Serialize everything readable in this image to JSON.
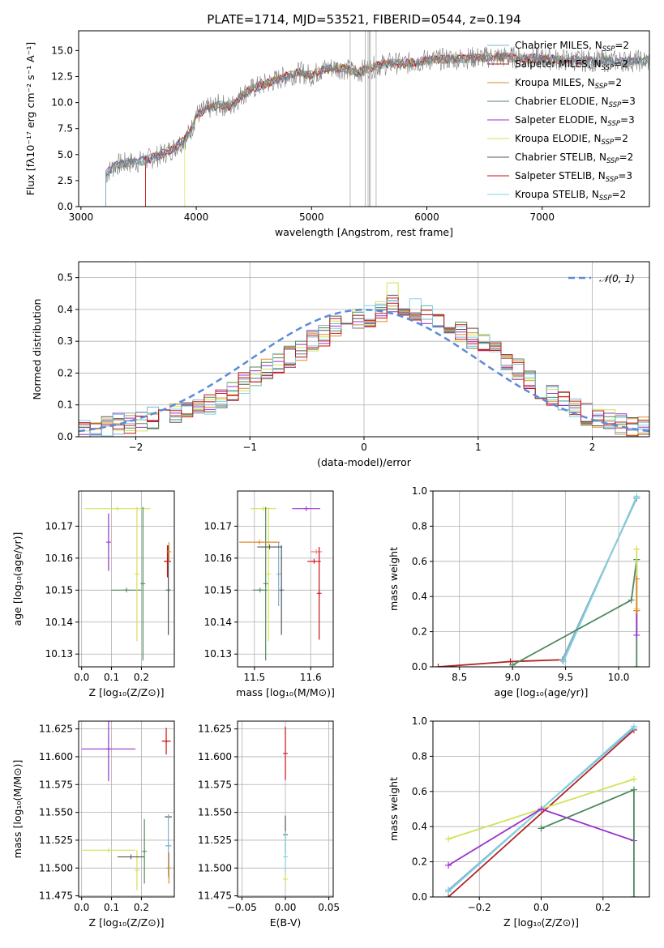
{
  "title": "PLATE=1714, MJD=53521, FIBERID=0544, z=0.194",
  "colors": [
    "#82b0d2",
    "#b22222",
    "#e08a2c",
    "#4f8a5f",
    "#9933cc",
    "#d4e157",
    "#555555",
    "#cc1111",
    "#7fd3e0"
  ],
  "chart_data": [
    {
      "id": "spectrum",
      "type": "line",
      "xlabel": "wavelength [Angstrom, rest frame]",
      "ylabel": "Flux [fλ10⁻¹⁷ erg cm⁻² s⁻¹ A⁻¹]",
      "xlim": [
        2980,
        7930
      ],
      "ylim": [
        0,
        16.9
      ],
      "xticks": [
        3000,
        4000,
        5000,
        6000,
        7000
      ],
      "yticks": [
        0.0,
        2.5,
        5.0,
        7.5,
        10.0,
        12.5,
        15.0
      ],
      "legend": "top-right",
      "continuum": {
        "x": [
          3215,
          3250,
          3300,
          3400,
          3500,
          3600,
          3700,
          3800,
          3900,
          3950,
          4000,
          4100,
          4200,
          4300,
          4400,
          4500,
          4600,
          4700,
          4800,
          4900,
          5000,
          5100,
          5200,
          5300,
          5400,
          5500,
          5600,
          5700,
          5800,
          5900,
          6000,
          6200,
          6400,
          6600,
          6800,
          7000,
          7200,
          7400
        ],
        "y": [
          3.0,
          3.5,
          4.0,
          4.2,
          4.3,
          4.6,
          5.0,
          5.6,
          6.5,
          7.2,
          8.8,
          9.4,
          9.8,
          9.6,
          10.8,
          11.4,
          11.8,
          12.2,
          12.6,
          12.9,
          12.6,
          13.2,
          13.4,
          13.2,
          12.9,
          13.3,
          13.6,
          13.8,
          13.7,
          13.9,
          14.1,
          14.2,
          14.3,
          14.4,
          14.3,
          14.2,
          14.1,
          14.0
        ]
      },
      "series_names": [
        "Chabrier MILES, N_SSP=2",
        "Salpeter MILES, N_SSP=2",
        "Kroupa MILES, N_SSP=2",
        "Chabrier ELODIE, N_SSP=3",
        "Salpeter ELODIE, N_SSP=3",
        "Kroupa ELODIE, N_SSP=2",
        "Chabrier STELIB, N_SSP=2",
        "Salpeter STELIB, N_SSP=3",
        "Kroupa STELIB, N_SSP=2"
      ]
    },
    {
      "id": "residuals",
      "type": "line",
      "xlabel": "(data-model)/error",
      "ylabel": "Normed distribution",
      "xlim": [
        -2.5,
        2.5
      ],
      "ylim": [
        0,
        0.55
      ],
      "xticks": [
        -2,
        -1,
        0,
        1,
        2
      ],
      "yticks": [
        0.0,
        0.1,
        0.2,
        0.3,
        0.4,
        0.5
      ],
      "reference_label": "𝒩(0, 1)",
      "histogram_bins": [
        -2.5,
        -2.4,
        -2.3,
        -2.2,
        -2.1,
        -2.0,
        -1.9,
        -1.8,
        -1.7,
        -1.6,
        -1.5,
        -1.4,
        -1.3,
        -1.2,
        -1.1,
        -1.0,
        -0.9,
        -0.8,
        -0.7,
        -0.6,
        -0.5,
        -0.4,
        -0.3,
        -0.2,
        -0.1,
        0.0,
        0.1,
        0.2,
        0.3,
        0.4,
        0.5,
        0.6,
        0.7,
        0.8,
        0.9,
        1.0,
        1.1,
        1.2,
        1.3,
        1.4,
        1.5,
        1.6,
        1.7,
        1.8,
        1.9,
        2.0,
        2.1,
        2.2,
        2.3,
        2.4,
        2.5
      ],
      "histogram_mean": [
        0.02,
        0.02,
        0.03,
        0.04,
        0.04,
        0.05,
        0.06,
        0.07,
        0.07,
        0.08,
        0.09,
        0.1,
        0.12,
        0.14,
        0.17,
        0.19,
        0.21,
        0.23,
        0.25,
        0.27,
        0.3,
        0.32,
        0.35,
        0.36,
        0.37,
        0.38,
        0.39,
        0.41,
        0.41,
        0.4,
        0.38,
        0.37,
        0.35,
        0.33,
        0.31,
        0.3,
        0.27,
        0.24,
        0.21,
        0.18,
        0.15,
        0.13,
        0.11,
        0.09,
        0.07,
        0.06,
        0.05,
        0.04,
        0.03,
        0.03
      ]
    },
    {
      "id": "age_vs_Z",
      "type": "scatter",
      "xlabel": "Z [log₁₀(Z/Z⊙)]",
      "ylabel": "age  [log₁₀(age/yr)]",
      "xlim": [
        -0.01,
        0.31
      ],
      "ylim": [
        10.126,
        10.181
      ],
      "xticks": [
        0.0,
        0.1,
        0.2
      ],
      "yticks": [
        10.13,
        10.14,
        10.15,
        10.16,
        10.17
      ],
      "points": [
        {
          "x": 0.09,
          "y": 10.165,
          "xerr": 0.0,
          "yerr": 0.009,
          "color": "#9933cc"
        },
        {
          "x": 0.15,
          "y": 10.15,
          "xerr": 0.05,
          "yerr": 0.0,
          "color": "#4f8a5f"
        },
        {
          "x": 0.12,
          "y": 10.1755,
          "xerr": 0.11,
          "yerr": 0.0,
          "color": "#d4e157"
        },
        {
          "x": 0.185,
          "y": 10.155,
          "xerr": 0.0,
          "yerr": 0.021,
          "color": "#d4e157"
        },
        {
          "x": 0.205,
          "y": 10.152,
          "xerr": 0.0,
          "yerr": 0.024,
          "color": "#4f8a5f"
        },
        {
          "x": 0.287,
          "y": 10.159,
          "xerr": 0.012,
          "yerr": 0.005,
          "color": "#cc1111"
        },
        {
          "x": 0.29,
          "y": 10.15,
          "xerr": 0.0,
          "yerr": 0.014,
          "color": "#555555"
        },
        {
          "x": 0.292,
          "y": 10.162,
          "xerr": 0.005,
          "yerr": 0.003,
          "color": "#e08a2c"
        }
      ]
    },
    {
      "id": "age_vs_mass",
      "type": "scatter",
      "xlabel": "mass [log₁₀(M/M⊙)]",
      "ylabel": "",
      "xlim": [
        11.47,
        11.64
      ],
      "ylim": [
        10.126,
        10.181
      ],
      "xticks": [
        11.5,
        11.6
      ],
      "yticks": [
        10.13,
        10.14,
        10.15,
        10.16,
        10.17
      ],
      "points": [
        {
          "x": 11.516,
          "y": 10.1755,
          "xerr": 0.023,
          "yerr": 0.0,
          "color": "#d4e157"
        },
        {
          "x": 11.51,
          "y": 10.15,
          "xerr": 0.013,
          "yerr": 0.0,
          "color": "#4f8a5f"
        },
        {
          "x": 11.52,
          "y": 10.152,
          "xerr": 0.0,
          "yerr": 0.024,
          "color": "#4f8a5f"
        },
        {
          "x": 11.525,
          "y": 10.155,
          "xerr": 0.0,
          "yerr": 0.021,
          "color": "#d4e157"
        },
        {
          "x": 11.509,
          "y": 10.165,
          "xerr": 0.036,
          "yerr": 0.0,
          "color": "#e08a2c"
        },
        {
          "x": 11.543,
          "y": 10.155,
          "xerr": 0.0,
          "yerr": 0.01,
          "color": "#82b0d2"
        },
        {
          "x": 11.527,
          "y": 10.1635,
          "xerr": 0.022,
          "yerr": 0.0,
          "color": "#555555"
        },
        {
          "x": 11.548,
          "y": 10.15,
          "xerr": 0.0,
          "yerr": 0.014,
          "color": "#555555"
        },
        {
          "x": 11.592,
          "y": 10.1755,
          "xerr": 0.025,
          "yerr": 0.0,
          "color": "#9933cc"
        },
        {
          "x": 11.61,
          "y": 10.162,
          "xerr": 0.01,
          "yerr": 0.0,
          "color": "#f08080"
        },
        {
          "x": 11.606,
          "y": 10.159,
          "xerr": 0.012,
          "yerr": 0.0,
          "color": "#cc1111"
        },
        {
          "x": 11.615,
          "y": 10.149,
          "xerr": 0.0,
          "yerr": 0.0145,
          "color": "#cc1111"
        }
      ]
    },
    {
      "id": "weight_vs_age",
      "type": "line",
      "xlabel": "age  [log₁₀(age/yr)]",
      "ylabel": "mass weight",
      "xlim": [
        8.25,
        10.29
      ],
      "ylim": [
        0,
        1.0
      ],
      "xticks": [
        8.5,
        9.0,
        9.5,
        10.0
      ],
      "yticks": [
        0.0,
        0.2,
        0.4,
        0.6,
        0.8,
        1.0
      ],
      "series": [
        {
          "x": [
            8.3,
            8.98,
            9.47,
            10.17
          ],
          "y": [
            0.0,
            0.03,
            0.04,
            0.96
          ],
          "color": "#b22222"
        },
        {
          "x": [
            9.47,
            10.17
          ],
          "y": [
            0.04,
            0.96
          ],
          "color": "#82b0d2"
        },
        {
          "x": [
            9.48,
            10.17
          ],
          "y": [
            0.03,
            0.97
          ],
          "color": "#7fd3e0"
        },
        {
          "x": [
            9.0,
            10.12,
            10.17,
            10.17
          ],
          "y": [
            0.01,
            0.38,
            0.61,
            0.0
          ],
          "color": "#4f8a5f"
        },
        {
          "x": [
            10.17,
            10.17
          ],
          "y": [
            0.33,
            0.67
          ],
          "color": "#d4e157"
        },
        {
          "x": [
            10.17,
            10.17
          ],
          "y": [
            0.18,
            0.32
          ],
          "color": "#9933cc"
        },
        {
          "x": [
            10.17,
            10.17
          ],
          "y": [
            0.32,
            0.5
          ],
          "color": "#e08a2c"
        }
      ]
    },
    {
      "id": "mass_vs_Z",
      "type": "scatter",
      "xlabel": "Z [log₁₀(Z/Z⊙)]",
      "ylabel": "mass [log₁₀(M/M⊙)]",
      "xlim": [
        -0.01,
        0.31
      ],
      "ylim": [
        11.474,
        11.632
      ],
      "xticks": [
        0.0,
        0.1,
        0.2
      ],
      "yticks": [
        11.475,
        11.5,
        11.525,
        11.55,
        11.575,
        11.6,
        11.625
      ],
      "points": [
        {
          "x": 0.09,
          "y": 11.607,
          "xerr": 0.09,
          "yerr": 0.029,
          "color": "#9933cc"
        },
        {
          "x": 0.09,
          "y": 11.516,
          "xerr": 0.09,
          "yerr": 0.0,
          "color": "#d4e157"
        },
        {
          "x": 0.185,
          "y": 11.498,
          "xerr": 0.0,
          "yerr": 0.018,
          "color": "#d4e157"
        },
        {
          "x": 0.165,
          "y": 11.51,
          "xerr": 0.045,
          "yerr": 0.0,
          "color": "#555555"
        },
        {
          "x": 0.21,
          "y": 11.515,
          "xerr": 0.0,
          "yerr": 0.029,
          "color": "#4f8a5f"
        },
        {
          "x": 0.283,
          "y": 11.614,
          "xerr": 0.015,
          "yerr": 0.012,
          "color": "#cc1111"
        },
        {
          "x": 0.29,
          "y": 11.546,
          "xerr": 0.012,
          "yerr": 0.0,
          "color": "#555555"
        },
        {
          "x": 0.29,
          "y": 11.52,
          "xerr": 0.01,
          "yerr": 0.028,
          "color": "#82b0d2"
        },
        {
          "x": 0.292,
          "y": 11.5,
          "xerr": 0.0,
          "yerr": 0.014,
          "color": "#e08a2c"
        }
      ]
    },
    {
      "id": "mass_vs_EBV",
      "type": "scatter",
      "xlabel": "E(B-V)",
      "ylabel": "",
      "xlim": [
        -0.055,
        0.055
      ],
      "ylim": [
        11.474,
        11.632
      ],
      "xticks": [
        -0.05,
        0.0,
        0.05
      ],
      "yticks": [
        11.475,
        11.5,
        11.525,
        11.55,
        11.575,
        11.6,
        11.625
      ],
      "points": [
        {
          "x": 0.0,
          "y": 11.603,
          "xerr": 0.0,
          "yerr": 0.024,
          "color": "#cc1111"
        },
        {
          "x": 0.0,
          "y": 11.53,
          "xerr": 0.0,
          "yerr": 0.017,
          "color": "#555555"
        },
        {
          "x": 0.0,
          "y": 11.51,
          "xerr": 0.0,
          "yerr": 0.023,
          "color": "#7fd3e0"
        },
        {
          "x": 0.0,
          "y": 11.49,
          "xerr": 0.0,
          "yerr": 0.006,
          "color": "#d4e157"
        }
      ]
    },
    {
      "id": "weight_vs_Z",
      "type": "line",
      "xlabel": "Z [log₁₀(Z/Z⊙)]",
      "ylabel": "mass weight",
      "xlim": [
        -0.35,
        0.35
      ],
      "ylim": [
        0,
        1.0
      ],
      "xticks": [
        -0.2,
        0.0,
        0.2
      ],
      "yticks": [
        0.0,
        0.2,
        0.4,
        0.6,
        0.8,
        1.0
      ],
      "series": [
        {
          "x": [
            -0.3,
            0.3
          ],
          "y": [
            0.0,
            0.95
          ],
          "color": "#b22222"
        },
        {
          "x": [
            -0.3,
            0.3
          ],
          "y": [
            0.04,
            0.96
          ],
          "color": "#82b0d2"
        },
        {
          "x": [
            -0.3,
            0.3
          ],
          "y": [
            0.03,
            0.97
          ],
          "color": "#7fd3e0"
        },
        {
          "x": [
            -0.3,
            0.3
          ],
          "y": [
            0.33,
            0.67
          ],
          "color": "#d4e157"
        },
        {
          "x": [
            -0.3,
            0.0,
            0.3
          ],
          "y": [
            0.18,
            0.5,
            0.32
          ],
          "color": "#9933cc"
        },
        {
          "x": [
            0.0,
            0.3,
            0.3
          ],
          "y": [
            0.39,
            0.61,
            0.0
          ],
          "color": "#4f8a5f"
        }
      ]
    }
  ]
}
